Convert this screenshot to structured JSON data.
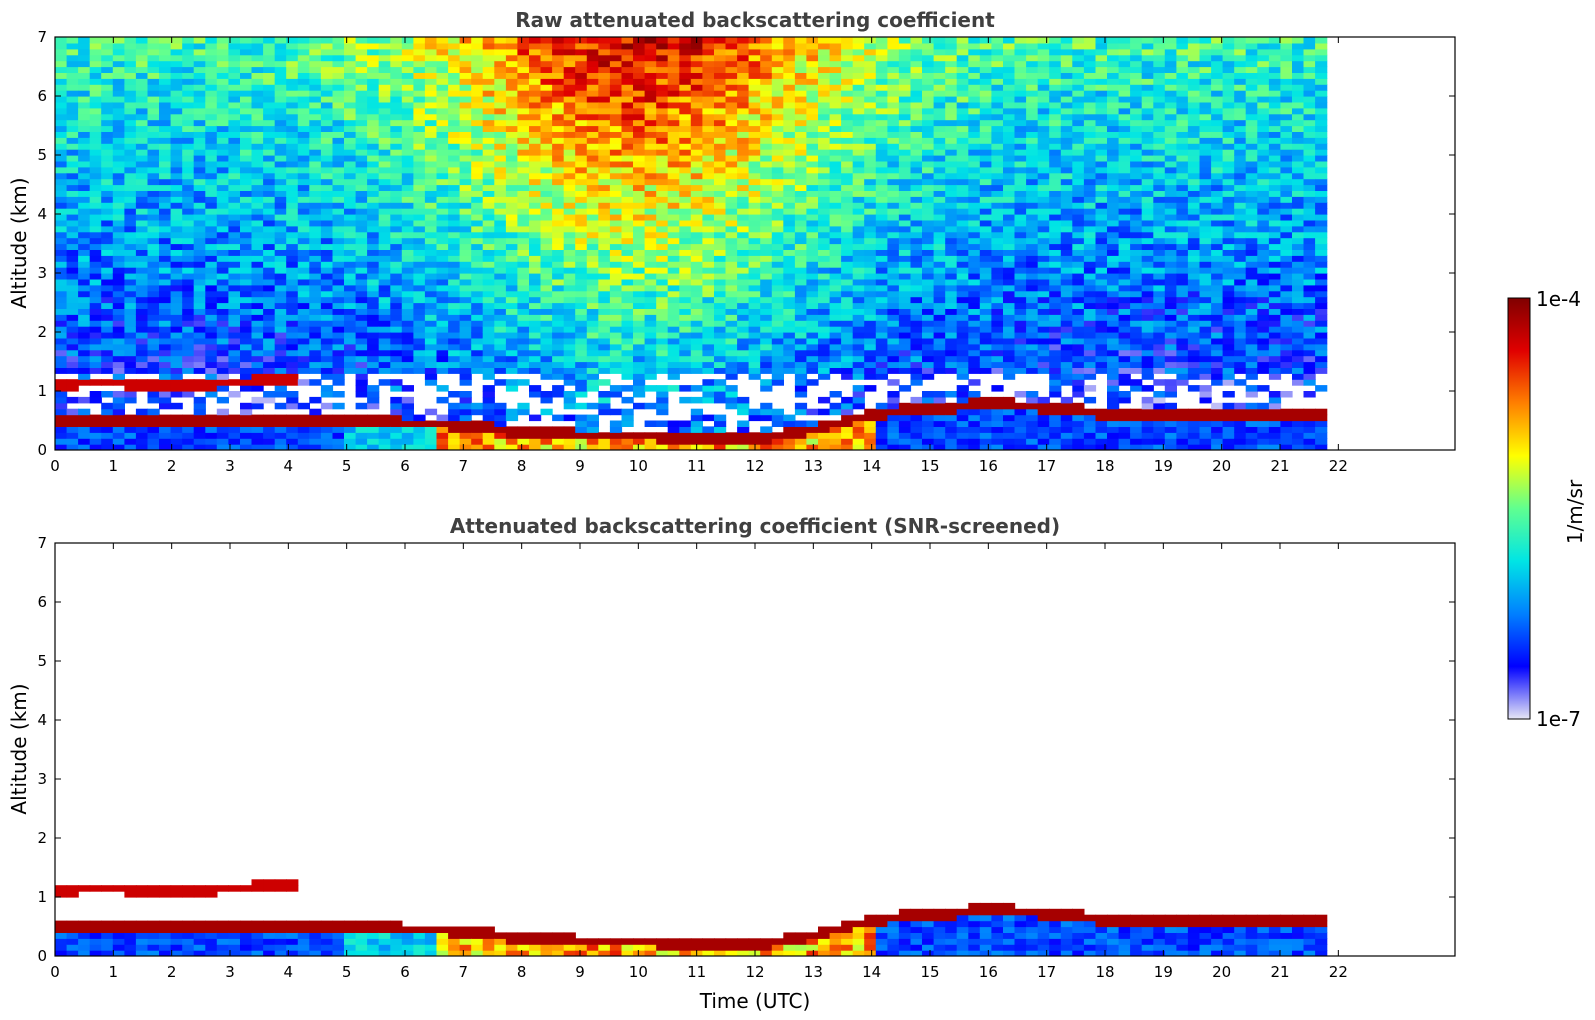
{
  "chart_data": [
    {
      "type": "heatmap",
      "title": "Raw attenuated backscattering coefficient",
      "xlabel": "",
      "ylabel": "Altitude (km)",
      "xlim": [
        0,
        24
      ],
      "ylim": [
        0,
        7
      ],
      "xticks": [
        "0",
        "1",
        "2",
        "3",
        "4",
        "5",
        "6",
        "7",
        "8",
        "9",
        "10",
        "11",
        "12",
        "13",
        "14",
        "15",
        "16",
        "17",
        "18",
        "19",
        "20",
        "21",
        "22"
      ],
      "yticks": [
        "0",
        "1",
        "2",
        "3",
        "4",
        "5",
        "6",
        "7"
      ],
      "data_time_range_utc": [
        0,
        21.8
      ],
      "features": {
        "boundary_layer_top_km": [
          [
            0,
            0.45
          ],
          [
            1,
            0.47
          ],
          [
            2,
            0.5
          ],
          [
            3,
            0.5
          ],
          [
            4,
            0.52
          ],
          [
            5,
            0.48
          ],
          [
            6,
            0.45
          ],
          [
            7,
            0.42
          ],
          [
            8,
            0.3
          ],
          [
            9,
            0.25
          ],
          [
            10,
            0.25
          ],
          [
            11,
            0.2
          ],
          [
            12,
            0.18
          ],
          [
            13,
            0.35
          ],
          [
            14,
            0.6
          ],
          [
            15,
            0.7
          ],
          [
            16,
            0.78
          ],
          [
            17,
            0.72
          ],
          [
            18,
            0.6
          ],
          [
            19,
            0.58
          ],
          [
            20,
            0.6
          ],
          [
            21,
            0.58
          ],
          [
            21.8,
            0.62
          ]
        ],
        "elevated_layer_km": [
          [
            0,
            1.1
          ],
          [
            0.5,
            1.15
          ],
          [
            2.3,
            1.1
          ],
          [
            3,
            1.15
          ],
          [
            4,
            1.2
          ]
        ]
      }
    },
    {
      "type": "heatmap",
      "title": "Attenuated backscattering coefficient (SNR-screened)",
      "xlabel": "Time (UTC)",
      "ylabel": "Altitude (km)",
      "xlim": [
        0,
        24
      ],
      "ylim": [
        0,
        7
      ],
      "xticks": [
        "0",
        "1",
        "2",
        "3",
        "4",
        "5",
        "6",
        "7",
        "8",
        "9",
        "10",
        "11",
        "12",
        "13",
        "14",
        "15",
        "16",
        "17",
        "18",
        "19",
        "20",
        "21",
        "22"
      ],
      "yticks": [
        "0",
        "1",
        "2",
        "3",
        "4",
        "5",
        "6",
        "7"
      ],
      "data_time_range_utc": [
        0,
        21.8
      ]
    }
  ],
  "colorbar": {
    "label": "1/m/sr",
    "max_label": "1e-4",
    "min_label": "1e-7",
    "scale": "log",
    "colormap": [
      "#e6e6f5",
      "#0000ff",
      "#0080ff",
      "#00e5e5",
      "#60ff90",
      "#ffff00",
      "#ff8000",
      "#e00000",
      "#800000"
    ]
  },
  "colors": {
    "axis": "#000000",
    "title": "#404040",
    "background": "#ffffff"
  }
}
